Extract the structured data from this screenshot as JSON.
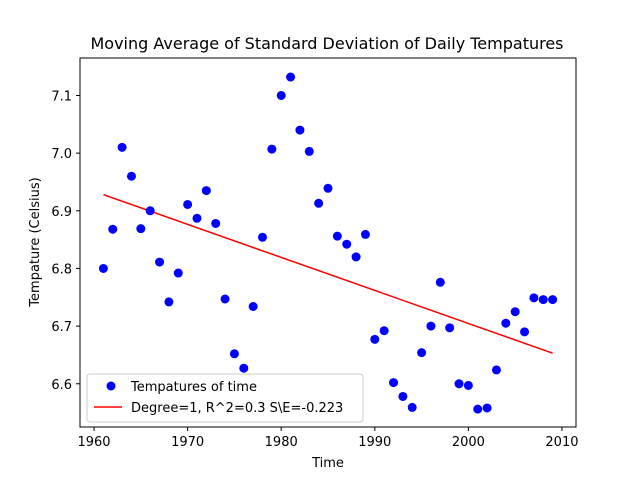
{
  "chart_data": {
    "type": "scatter",
    "title": "Moving Average of Standard Deviation of Daily Tempatures",
    "xlabel": "Time",
    "ylabel": "Tempature (Celsius)",
    "xlim": [
      1958.5,
      2011.5
    ],
    "ylim": [
      6.525,
      7.165
    ],
    "xticks": [
      1960,
      1970,
      1980,
      1990,
      2000,
      2010
    ],
    "yticks": [
      6.6,
      6.7,
      6.8,
      6.9,
      7.0,
      7.1
    ],
    "ytick_labels": [
      "6.6",
      "6.7",
      "6.8",
      "6.9",
      "7.0",
      "7.1"
    ],
    "grid": false,
    "legend_position": "lower-left",
    "series": [
      {
        "name": "Tempatures of time",
        "kind": "scatter",
        "color": "#0000ff",
        "x": [
          1961,
          1962,
          1963,
          1964,
          1965,
          1966,
          1967,
          1968,
          1969,
          1970,
          1971,
          1972,
          1973,
          1974,
          1975,
          1976,
          1977,
          1978,
          1979,
          1980,
          1981,
          1982,
          1983,
          1984,
          1985,
          1986,
          1987,
          1988,
          1989,
          1990,
          1991,
          1992,
          1993,
          1994,
          1995,
          1996,
          1997,
          1998,
          1999,
          2000,
          2001,
          2002,
          2003,
          2004,
          2005,
          2006,
          2007,
          2008,
          2009
        ],
        "y": [
          6.8,
          6.868,
          7.01,
          6.96,
          6.869,
          6.9,
          6.811,
          6.742,
          6.792,
          6.911,
          6.887,
          6.935,
          6.878,
          6.747,
          6.652,
          6.627,
          6.734,
          6.854,
          7.007,
          7.1,
          7.132,
          7.04,
          7.003,
          6.913,
          6.939,
          6.856,
          6.842,
          6.82,
          6.859,
          6.677,
          6.692,
          6.602,
          6.578,
          6.559,
          6.654,
          6.7,
          6.776,
          6.697,
          6.6,
          6.597,
          6.556,
          6.558,
          6.624,
          6.705,
          6.725,
          6.69,
          6.749,
          6.746,
          6.746
        ]
      },
      {
        "name": "Degree=1, R^2=0.3 S\\E=-0.223",
        "kind": "line",
        "color": "#ff0000",
        "x": [
          1961,
          2009
        ],
        "y": [
          6.928,
          6.653
        ]
      }
    ]
  }
}
